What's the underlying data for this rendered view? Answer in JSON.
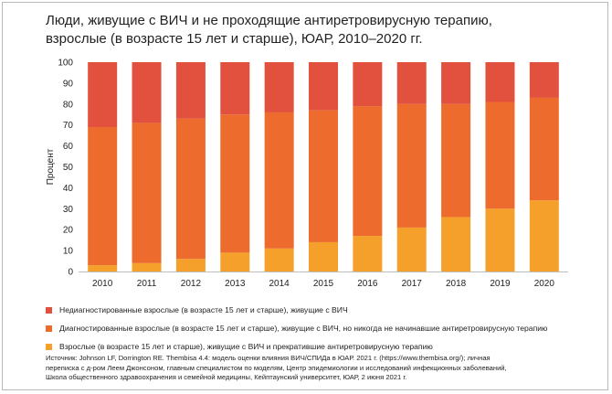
{
  "title_lines": [
    "Люди, живущие с ВИЧ и не проходящие антиретровирусную терапию,",
    "взрослые (в возрасте 15 лет и старше), ЮАР, 2010–2020 гг."
  ],
  "chart_data": {
    "type": "bar",
    "stacked": true,
    "categories": [
      "2010",
      "2011",
      "2012",
      "2013",
      "2014",
      "2015",
      "2016",
      "2017",
      "2018",
      "2019",
      "2020"
    ],
    "series": [
      {
        "name": "Взрослые (в возрасте 15 лет и старше), живущие с ВИЧ и прекратившие антиретровирусную терапию",
        "color": "#f5a02a",
        "values": [
          3,
          4,
          6,
          9,
          11,
          14,
          17,
          21,
          26,
          30,
          34
        ]
      },
      {
        "name": "Диагностированные взрослые (в возрасте 15 лет и старше), живущие с ВИЧ, но никогда не начинавшие антиретровирусную терапию",
        "color": "#ec6b2d",
        "values": [
          66,
          67,
          67,
          66,
          65,
          63,
          62,
          59,
          54,
          51,
          49
        ]
      },
      {
        "name": "Недиагностированные взрослые (в возрасте 15 лет и старше), живущие с ВИЧ",
        "color": "#e2513e",
        "values": [
          31,
          29,
          27,
          25,
          24,
          23,
          21,
          20,
          20,
          19,
          17
        ]
      }
    ],
    "ylabel": "Процент",
    "ylim": [
      0,
      100
    ],
    "yticks": [
      0,
      10,
      20,
      30,
      40,
      50,
      60,
      70,
      80,
      90,
      100
    ],
    "grid": false,
    "legend_position": "bottom"
  },
  "source_lines": [
    "Источник: Johnson LF, Dorrington RE. Thembisa 4.4: модель оценки влияния ВИЧ/СПИДа в ЮАР. 2021 г. (https://www.thembisa.org/); личная",
    "переписка с д-ром Леем Джонсоном, главным специалистом по моделям, Центр эпидемиологии и исследований инфекционных заболеваний,",
    "Школа общественного здравоохранения и семейной медицины, Кейптаунский университет, ЮАР, 2 июня 2021 г."
  ]
}
